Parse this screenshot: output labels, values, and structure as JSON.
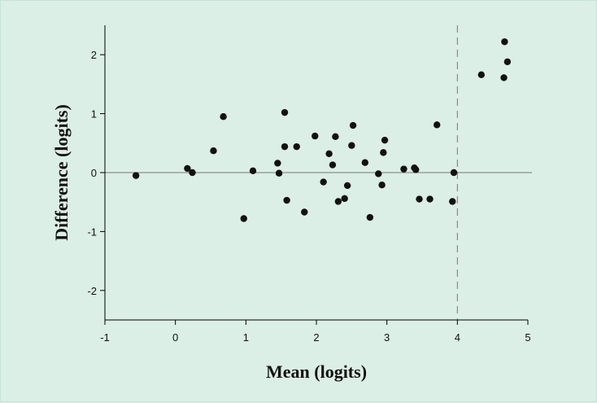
{
  "chart_data": {
    "type": "scatter",
    "title": "",
    "xlabel": "Mean (logits)",
    "ylabel": "Difference (logits)",
    "xlim": [
      -1,
      5
    ],
    "ylim": [
      -2.5,
      2.5
    ],
    "xticks": [
      "-1",
      "0",
      "1",
      "2",
      "3",
      "4",
      "5"
    ],
    "yticks": [
      "2",
      "1",
      "0",
      "-1",
      "-2"
    ],
    "reference_lines": {
      "horizontal_y": 0,
      "vertical_dashed_x": 4
    },
    "grid": false,
    "colors": {
      "background": "#dcefe6",
      "points": "#111111",
      "axis": "#000000",
      "reference_line": "#777777"
    },
    "points": [
      {
        "x": -0.56,
        "y": -0.05
      },
      {
        "x": 0.17,
        "y": 0.07
      },
      {
        "x": 0.24,
        "y": 0.0
      },
      {
        "x": 0.54,
        "y": 0.37
      },
      {
        "x": 0.68,
        "y": 0.95
      },
      {
        "x": 0.97,
        "y": -0.78
      },
      {
        "x": 1.1,
        "y": 0.03
      },
      {
        "x": 1.45,
        "y": 0.16
      },
      {
        "x": 1.47,
        "y": -0.01
      },
      {
        "x": 1.55,
        "y": 1.02
      },
      {
        "x": 1.55,
        "y": 0.44
      },
      {
        "x": 1.58,
        "y": -0.47
      },
      {
        "x": 1.72,
        "y": 0.44
      },
      {
        "x": 1.83,
        "y": -0.67
      },
      {
        "x": 1.98,
        "y": 0.62
      },
      {
        "x": 2.1,
        "y": -0.16
      },
      {
        "x": 2.18,
        "y": 0.32
      },
      {
        "x": 2.23,
        "y": 0.13
      },
      {
        "x": 2.27,
        "y": 0.61
      },
      {
        "x": 2.31,
        "y": -0.49
      },
      {
        "x": 2.4,
        "y": -0.44
      },
      {
        "x": 2.44,
        "y": -0.22
      },
      {
        "x": 2.5,
        "y": 0.46
      },
      {
        "x": 2.52,
        "y": 0.8
      },
      {
        "x": 2.69,
        "y": 0.17
      },
      {
        "x": 2.76,
        "y": -0.76
      },
      {
        "x": 2.88,
        "y": -0.02
      },
      {
        "x": 2.93,
        "y": -0.21
      },
      {
        "x": 2.95,
        "y": 0.34
      },
      {
        "x": 2.97,
        "y": 0.55
      },
      {
        "x": 3.24,
        "y": 0.06
      },
      {
        "x": 3.39,
        "y": 0.08
      },
      {
        "x": 3.41,
        "y": 0.05
      },
      {
        "x": 3.46,
        "y": -0.45
      },
      {
        "x": 3.61,
        "y": -0.45
      },
      {
        "x": 3.71,
        "y": 0.81
      },
      {
        "x": 3.93,
        "y": -0.49
      },
      {
        "x": 3.95,
        "y": 0.0
      },
      {
        "x": 4.34,
        "y": 1.66
      },
      {
        "x": 4.66,
        "y": 1.61
      },
      {
        "x": 4.67,
        "y": 2.22
      },
      {
        "x": 4.71,
        "y": 1.88
      }
    ]
  }
}
